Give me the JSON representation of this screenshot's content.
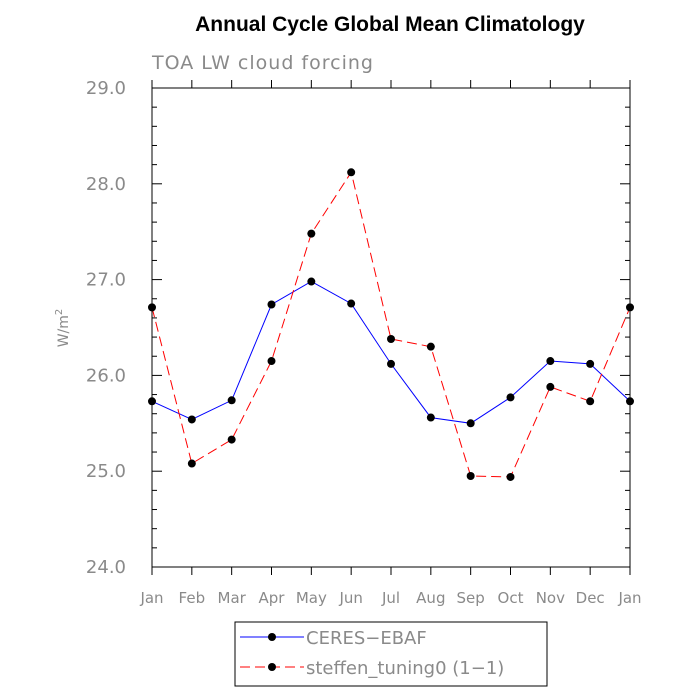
{
  "chart_data": {
    "type": "line",
    "title": "Annual Cycle Global Mean Climatology",
    "subtitle": "TOA LW cloud forcing",
    "ylabel": "W/m",
    "ylabel_sup": "2",
    "xlabel": "",
    "categories": [
      "Jan",
      "Feb",
      "Mar",
      "Apr",
      "May",
      "Jun",
      "Jul",
      "Aug",
      "Sep",
      "Oct",
      "Nov",
      "Dec",
      "Jan"
    ],
    "ylim": [
      24.0,
      29.0
    ],
    "yticks": [
      "24.0",
      "25.0",
      "26.0",
      "27.0",
      "28.0",
      "29.0"
    ],
    "series": [
      {
        "name": "CERES−EBAF",
        "color": "#0000ff",
        "dash": "solid",
        "values": [
          25.73,
          25.54,
          25.74,
          26.74,
          26.98,
          26.75,
          26.12,
          25.56,
          25.5,
          25.77,
          26.15,
          26.12,
          25.73
        ]
      },
      {
        "name": "steffen_tuning0 (1−1)",
        "color": "#ff0000",
        "dash": "dashed",
        "values": [
          26.71,
          25.08,
          25.33,
          26.15,
          27.48,
          28.12,
          26.38,
          26.3,
          24.95,
          24.94,
          25.88,
          25.73,
          26.71
        ]
      }
    ],
    "legend": "bottom-center"
  }
}
